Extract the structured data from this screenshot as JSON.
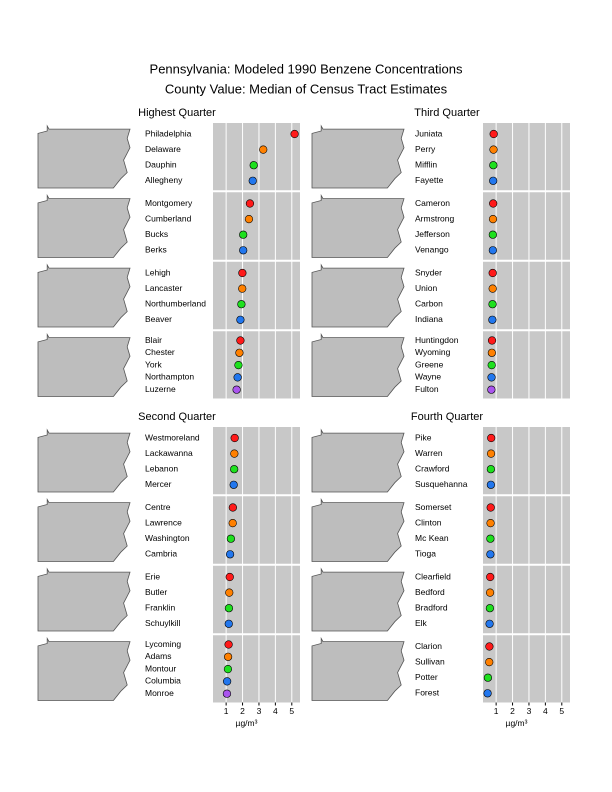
{
  "chart_data": {
    "type": "dotplot",
    "title": "Pennsylvania: Modeled 1990 Benzene Concentrations",
    "subtitle": "County Value: Median of Census Tract Estimates",
    "xlabel": "µg/m³",
    "xlim": [
      0.2,
      5.5
    ],
    "xticks": [
      1,
      2,
      3,
      4,
      5
    ],
    "colors": [
      "#ff1a1a",
      "#ff8000",
      "#1ee01e",
      "#2277ee",
      "#aa55ee"
    ],
    "panels": [
      {
        "title": "Highest Quarter",
        "groups": [
          {
            "names": [
              "Philadelphia",
              "Delaware",
              "Dauphin",
              "Allegheny"
            ],
            "values": [
              5.17,
              3.26,
              2.68,
              2.62
            ]
          },
          {
            "names": [
              "Montgomery",
              "Cumberland",
              "Bucks",
              "Berks"
            ],
            "values": [
              2.45,
              2.39,
              2.04,
              2.04
            ]
          },
          {
            "names": [
              "Lehigh",
              "Lancaster",
              "Northumberland",
              "Beaver"
            ],
            "values": [
              1.99,
              1.98,
              1.93,
              1.87
            ]
          },
          {
            "names": [
              "Blair",
              "Chester",
              "York",
              "Northampton",
              "Luzerne"
            ],
            "values": [
              1.87,
              1.81,
              1.75,
              1.7,
              1.64
            ]
          }
        ]
      },
      {
        "title": "Third Quarter",
        "groups": [
          {
            "names": [
              "Juniata",
              "Perry",
              "Mifflin",
              "Fayette"
            ],
            "values": [
              0.85,
              0.84,
              0.83,
              0.82
            ]
          },
          {
            "names": [
              "Cameron",
              "Armstrong",
              "Jefferson",
              "Venango"
            ],
            "values": [
              0.82,
              0.81,
              0.8,
              0.8
            ]
          },
          {
            "names": [
              "Snyder",
              "Union",
              "Carbon",
              "Indiana"
            ],
            "values": [
              0.79,
              0.79,
              0.78,
              0.77
            ]
          },
          {
            "names": [
              "Huntingdon",
              "Wyoming",
              "Greene",
              "Wayne",
              "Fulton"
            ],
            "values": [
              0.75,
              0.74,
              0.73,
              0.72,
              0.71
            ]
          }
        ]
      },
      {
        "title": "Second Quarter",
        "groups": [
          {
            "names": [
              "Westmoreland",
              "Lackawanna",
              "Lebanon",
              "Mercer"
            ],
            "values": [
              1.52,
              1.5,
              1.49,
              1.46
            ]
          },
          {
            "names": [
              "Centre",
              "Lawrence",
              "Washington",
              "Cambria"
            ],
            "values": [
              1.41,
              1.4,
              1.29,
              1.24
            ]
          },
          {
            "names": [
              "Erie",
              "Butler",
              "Franklin",
              "Schuylkill"
            ],
            "values": [
              1.22,
              1.19,
              1.17,
              1.16
            ]
          },
          {
            "names": [
              "Lycoming",
              "Adams",
              "Montour",
              "Columbia",
              "Monroe"
            ],
            "values": [
              1.15,
              1.12,
              1.11,
              1.06,
              1.05
            ]
          }
        ]
      },
      {
        "title": "Fourth Quarter",
        "groups": [
          {
            "names": [
              "Pike",
              "Warren",
              "Crawford",
              "Susquehanna"
            ],
            "values": [
              0.7,
              0.69,
              0.68,
              0.68
            ]
          },
          {
            "names": [
              "Somerset",
              "Clinton",
              "Mc Kean",
              "Tioga"
            ],
            "values": [
              0.67,
              0.66,
              0.65,
              0.65
            ]
          },
          {
            "names": [
              "Clearfield",
              "Bedford",
              "Bradford",
              "Elk"
            ],
            "values": [
              0.64,
              0.63,
              0.62,
              0.6
            ]
          },
          {
            "names": [
              "Clarion",
              "Sullivan",
              "Potter",
              "Forest"
            ],
            "values": [
              0.59,
              0.58,
              0.5,
              0.48
            ]
          }
        ]
      }
    ]
  }
}
